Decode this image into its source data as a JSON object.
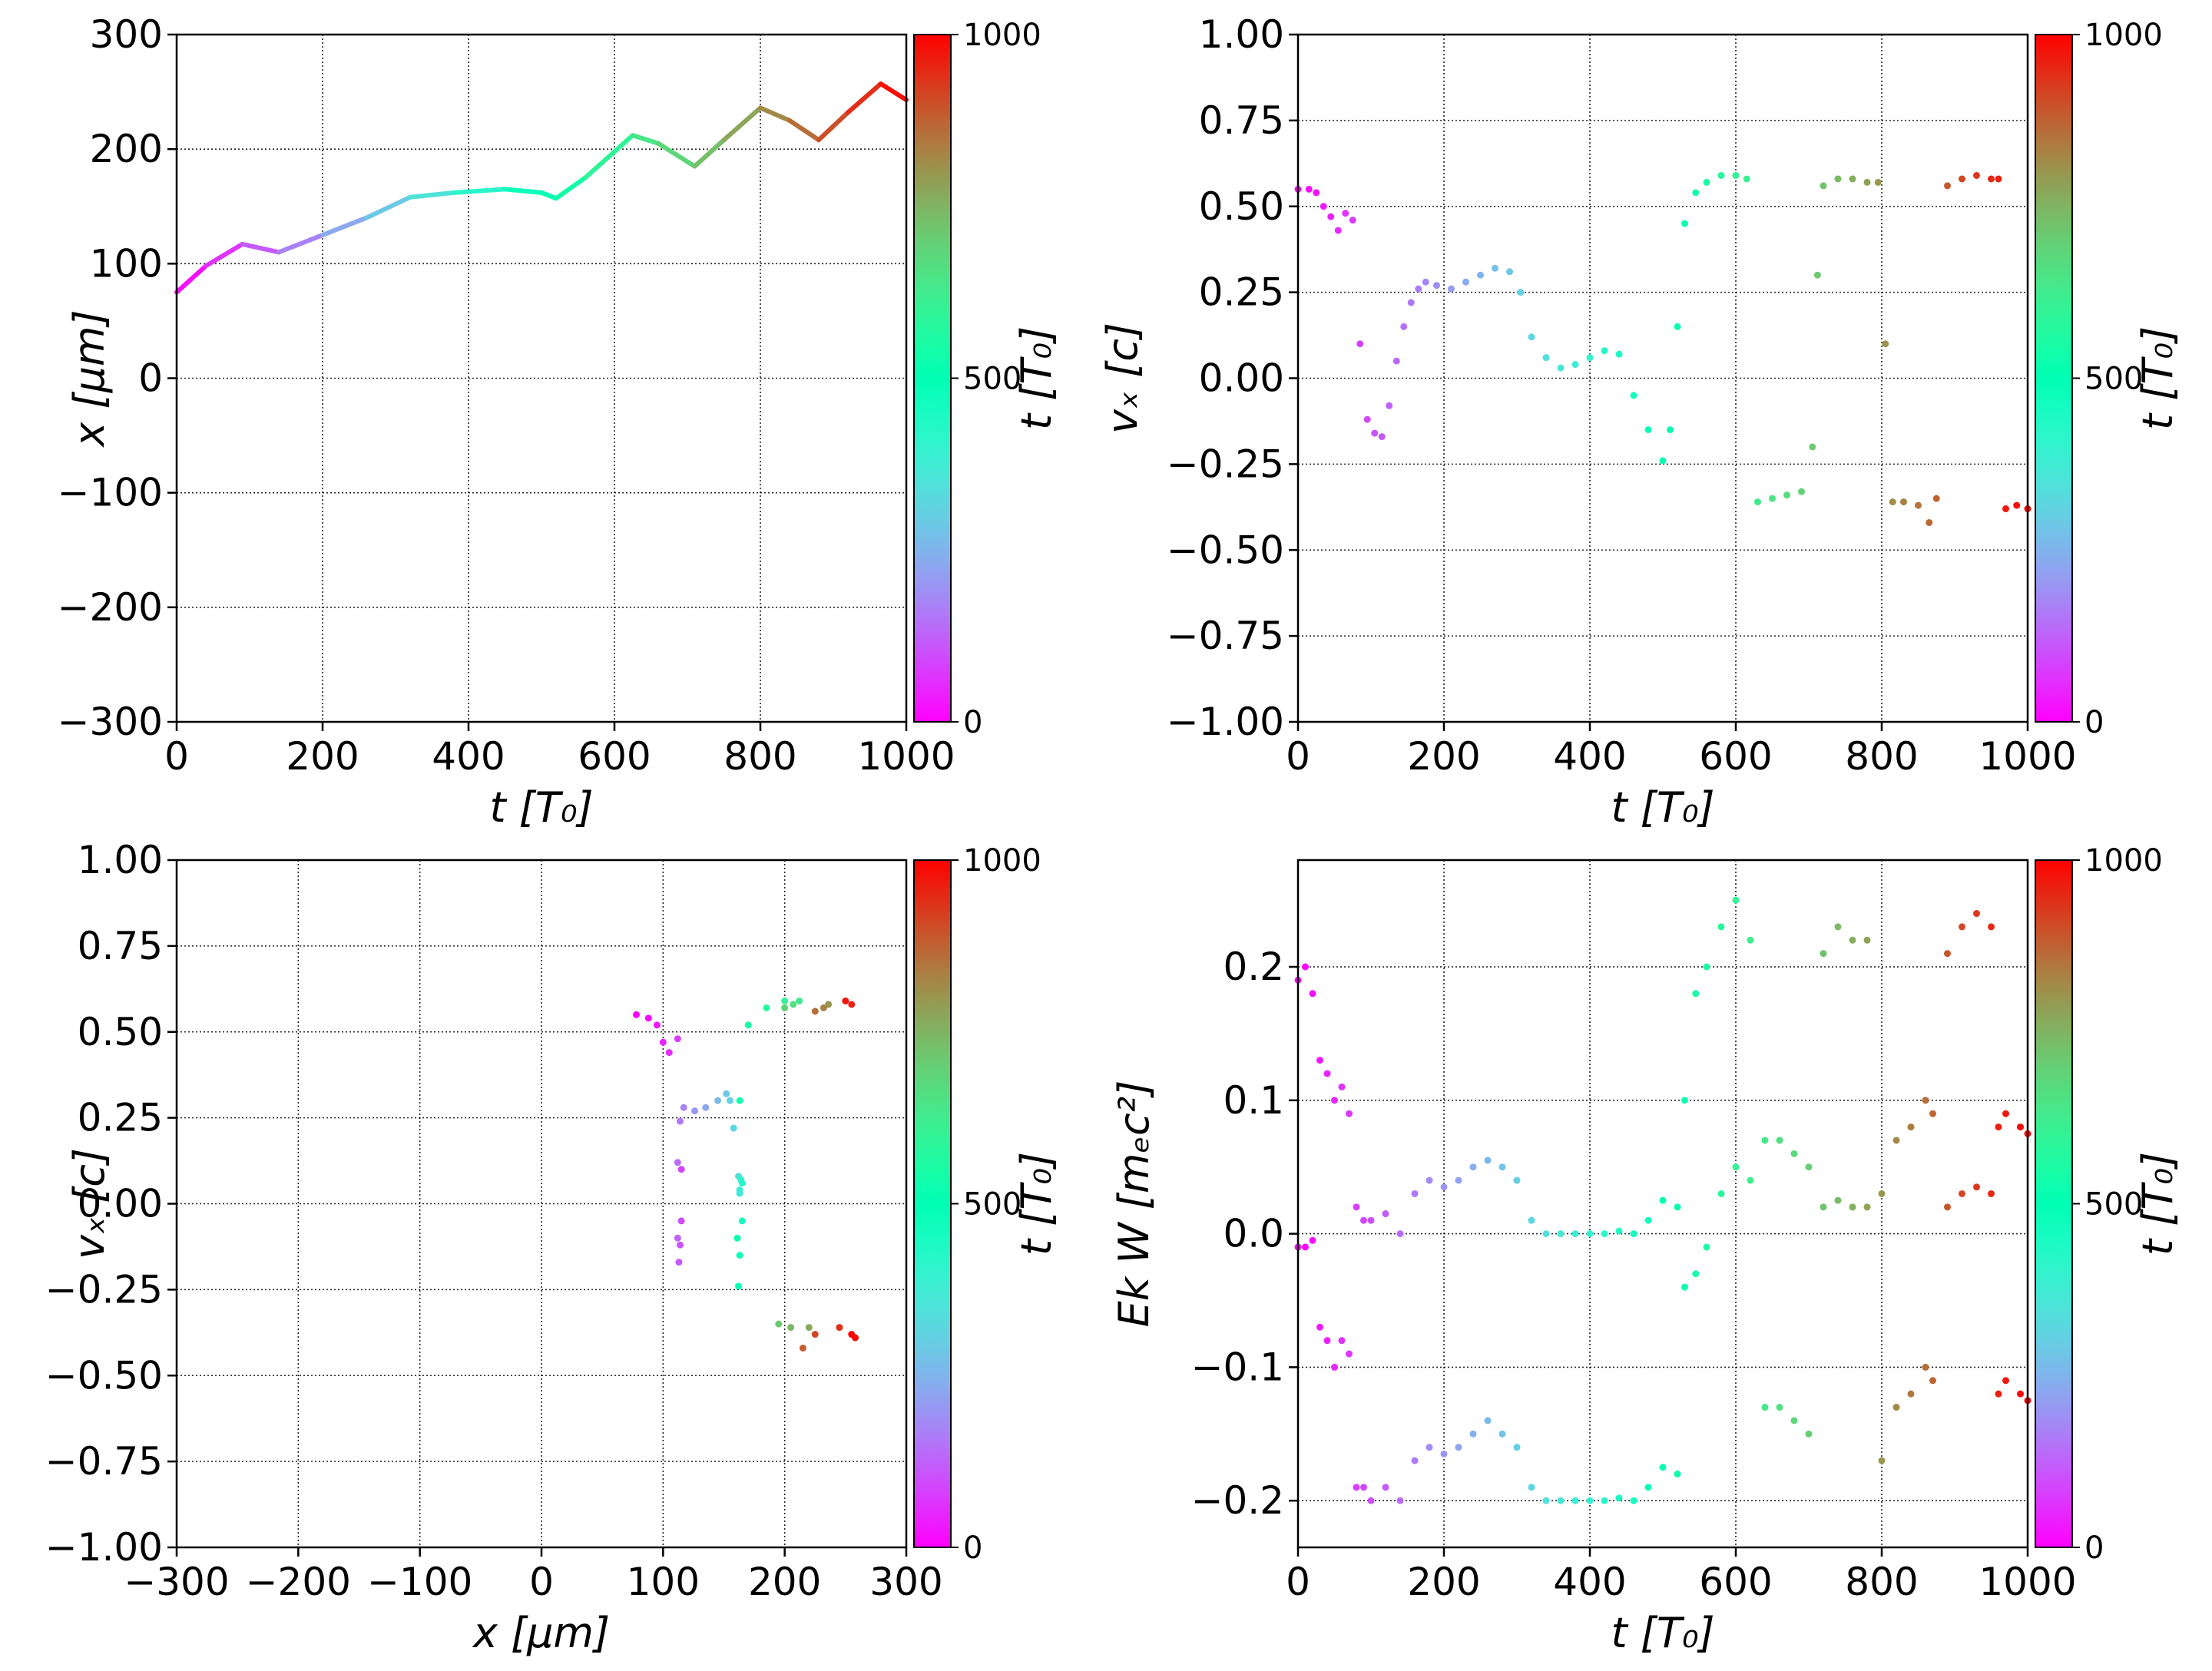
{
  "colorbar": {
    "label": "t [T₀]",
    "min": 0,
    "max": 1000,
    "ticks": [
      "0",
      "500",
      "1000"
    ],
    "colormap": "rainbow"
  },
  "chart_data": [
    {
      "type": "line",
      "xlabel": "t [T₀]",
      "ylabel": "x [μm]",
      "xlim": [
        0,
        1000
      ],
      "ylim": [
        -300,
        300
      ],
      "xticks": [
        "0",
        "200",
        "400",
        "600",
        "800",
        "1000"
      ],
      "yticks": [
        "−300",
        "−200",
        "−100",
        "0",
        "100",
        "200",
        "300"
      ],
      "grid": true,
      "color_by": "t",
      "x": [
        0,
        40,
        90,
        140,
        200,
        260,
        320,
        380,
        450,
        500,
        520,
        560,
        625,
        660,
        710,
        750,
        800,
        840,
        880,
        920,
        965,
        1000
      ],
      "y": [
        75,
        98,
        117,
        110,
        125,
        140,
        158,
        162,
        165,
        162,
        157,
        175,
        212,
        205,
        185,
        208,
        236,
        225,
        208,
        232,
        257,
        243
      ]
    },
    {
      "type": "scatter",
      "xlabel": "t [T₀]",
      "ylabel": "vₓ [c]",
      "xlim": [
        0,
        1000
      ],
      "ylim": [
        -1.0,
        1.0
      ],
      "xticks": [
        "0",
        "200",
        "400",
        "600",
        "800",
        "1000"
      ],
      "yticks": [
        "−1.00",
        "−0.75",
        "−0.50",
        "−0.25",
        "0.00",
        "0.25",
        "0.50",
        "0.75",
        "1.00"
      ],
      "grid": true,
      "color_by": "t",
      "x": [
        0,
        15,
        25,
        35,
        45,
        55,
        65,
        75,
        85,
        95,
        105,
        115,
        125,
        135,
        145,
        155,
        165,
        175,
        190,
        210,
        230,
        250,
        270,
        290,
        305,
        320,
        340,
        360,
        380,
        400,
        420,
        440,
        460,
        480,
        500,
        510,
        520,
        530,
        545,
        560,
        580,
        600,
        615,
        630,
        650,
        670,
        690,
        705,
        712,
        720,
        740,
        760,
        780,
        795,
        805,
        815,
        830,
        850,
        865,
        875,
        890,
        910,
        930,
        950,
        960,
        970,
        985,
        1000
      ],
      "y": [
        0.55,
        0.55,
        0.54,
        0.5,
        0.47,
        0.43,
        0.48,
        0.46,
        0.1,
        -0.12,
        -0.16,
        -0.17,
        -0.08,
        0.05,
        0.15,
        0.22,
        0.26,
        0.28,
        0.27,
        0.26,
        0.28,
        0.3,
        0.32,
        0.31,
        0.25,
        0.12,
        0.06,
        0.03,
        0.04,
        0.06,
        0.08,
        0.07,
        -0.05,
        -0.15,
        -0.24,
        -0.15,
        0.15,
        0.45,
        0.54,
        0.57,
        0.59,
        0.59,
        0.58,
        -0.36,
        -0.35,
        -0.34,
        -0.33,
        -0.2,
        0.3,
        0.56,
        0.58,
        0.58,
        0.57,
        0.57,
        0.1,
        -0.36,
        -0.36,
        -0.37,
        -0.42,
        -0.35,
        0.56,
        0.58,
        0.59,
        0.58,
        0.58,
        -0.38,
        -0.37,
        -0.38
      ]
    },
    {
      "type": "scatter",
      "xlabel": "x [μm]",
      "ylabel": "vₓ [c]",
      "xlim": [
        -300,
        300
      ],
      "ylim": [
        -1.0,
        1.0
      ],
      "xticks": [
        "−300",
        "−200",
        "−100",
        "0",
        "100",
        "200",
        "300"
      ],
      "yticks": [
        "−1.00",
        "−0.75",
        "−0.50",
        "−0.25",
        "0.00",
        "0.25",
        "0.50",
        "0.75",
        "1.00"
      ],
      "grid": true,
      "color_by": "t",
      "t": [
        0,
        15,
        30,
        45,
        60,
        75,
        85,
        95,
        105,
        115,
        125,
        140,
        155,
        175,
        200,
        230,
        260,
        290,
        305,
        320,
        340,
        360,
        380,
        400,
        430,
        460,
        480,
        500,
        515,
        530,
        550,
        570,
        600,
        630,
        660,
        690,
        710,
        740,
        770,
        800,
        830,
        860,
        880,
        910,
        940,
        960,
        975,
        990,
        1000
      ],
      "x": [
        78,
        88,
        95,
        100,
        105,
        112,
        115,
        115,
        114,
        113,
        112,
        112,
        114,
        117,
        126,
        135,
        145,
        152,
        155,
        158,
        162,
        163,
        163,
        164,
        165,
        165,
        163,
        162,
        161,
        163,
        170,
        185,
        200,
        212,
        207,
        200,
        195,
        205,
        220,
        236,
        232,
        225,
        215,
        225,
        245,
        255,
        250,
        258,
        255
      ],
      "y": [
        0.55,
        0.54,
        0.52,
        0.47,
        0.44,
        0.48,
        0.1,
        -0.05,
        -0.12,
        -0.17,
        -0.1,
        0.12,
        0.24,
        0.28,
        0.27,
        0.28,
        0.3,
        0.32,
        0.3,
        0.22,
        0.08,
        0.03,
        0.04,
        0.07,
        0.06,
        -0.05,
        -0.15,
        -0.24,
        -0.1,
        0.3,
        0.52,
        0.57,
        0.59,
        0.59,
        0.58,
        0.57,
        -0.35,
        -0.36,
        -0.36,
        0.58,
        0.57,
        0.56,
        -0.42,
        -0.38,
        -0.36,
        0.58,
        0.59,
        -0.39,
        -0.38
      ]
    },
    {
      "type": "scatter",
      "xlabel": "t [T₀]",
      "ylabel": "Ek W [mₑc²]",
      "xlim": [
        0,
        1000
      ],
      "ylim": [
        -0.235,
        0.28
      ],
      "xticks": [
        "0",
        "200",
        "400",
        "600",
        "800",
        "1000"
      ],
      "yticks": [
        "−0.2",
        "−0.1",
        "0.0",
        "0.1",
        "0.2"
      ],
      "grid": true,
      "series": [
        {
          "color_by": "t",
          "x": [
            0,
            10,
            20,
            30,
            40,
            50,
            60,
            70,
            80,
            90,
            100,
            120,
            140,
            160,
            180,
            200,
            220,
            240,
            260,
            280,
            300,
            320,
            340,
            360,
            380,
            400,
            420,
            440,
            460,
            480,
            500,
            520,
            530,
            545,
            560,
            580,
            600,
            620,
            640,
            660,
            680,
            700,
            720,
            740,
            760,
            780,
            800,
            820,
            840,
            860,
            870,
            890,
            910,
            930,
            950,
            960,
            970,
            990,
            1000
          ],
          "y": [
            0.19,
            0.2,
            0.18,
            0.13,
            0.12,
            0.1,
            0.11,
            0.09,
            0.02,
            0.01,
            0.01,
            0.015,
            0.0,
            0.03,
            0.04,
            0.035,
            0.04,
            0.05,
            0.055,
            0.05,
            0.04,
            0.01,
            0.0,
            0.0,
            0.0,
            0.0,
            0.0,
            0.002,
            0.0,
            0.01,
            0.025,
            0.02,
            0.1,
            0.18,
            0.2,
            0.23,
            0.25,
            0.22,
            0.07,
            0.07,
            0.06,
            0.05,
            0.21,
            0.23,
            0.22,
            0.22,
            0.03,
            0.07,
            0.08,
            0.1,
            0.09,
            0.21,
            0.23,
            0.24,
            0.23,
            0.08,
            0.09,
            0.08,
            0.075
          ]
        },
        {
          "color_by": "t",
          "x": [
            0,
            10,
            20,
            30,
            40,
            50,
            60,
            70,
            80,
            90,
            100,
            120,
            140,
            160,
            180,
            200,
            220,
            240,
            260,
            280,
            300,
            320,
            340,
            360,
            380,
            400,
            420,
            440,
            460,
            480,
            500,
            520,
            530,
            545,
            560,
            580,
            600,
            620,
            640,
            660,
            680,
            700,
            720,
            740,
            760,
            780,
            800,
            820,
            840,
            860,
            870,
            890,
            910,
            930,
            950,
            960,
            970,
            990,
            1000
          ],
          "y": [
            -0.01,
            -0.01,
            -0.005,
            -0.07,
            -0.08,
            -0.1,
            -0.08,
            -0.09,
            -0.19,
            -0.19,
            -0.2,
            -0.19,
            -0.2,
            -0.17,
            -0.16,
            -0.165,
            -0.16,
            -0.15,
            -0.14,
            -0.15,
            -0.16,
            -0.19,
            -0.2,
            -0.2,
            -0.2,
            -0.2,
            -0.2,
            -0.198,
            -0.2,
            -0.19,
            -0.175,
            -0.18,
            -0.04,
            -0.03,
            -0.01,
            0.03,
            0.05,
            0.04,
            -0.13,
            -0.13,
            -0.14,
            -0.15,
            0.02,
            0.025,
            0.02,
            0.02,
            -0.17,
            -0.13,
            -0.12,
            -0.1,
            -0.11,
            0.02,
            0.03,
            0.035,
            0.03,
            -0.12,
            -0.11,
            -0.12,
            -0.125
          ]
        }
      ]
    }
  ]
}
